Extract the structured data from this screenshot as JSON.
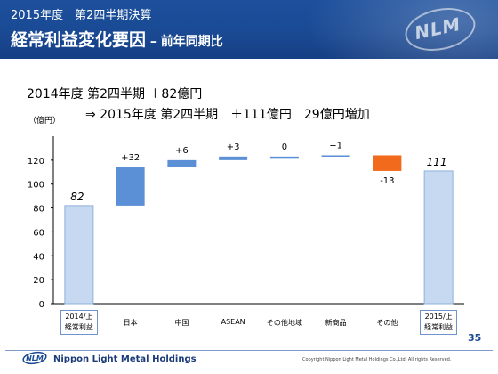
{
  "header": {
    "subtitle": "2015年度　第2四半期決算",
    "title": "経常利益変化要因",
    "title_suffix": " – 前年同期比"
  },
  "summary": {
    "line1": "2014年度 第2四半期 ＋82億円",
    "line2": "⇒ 2015年度 第2四半期　＋111億円　29億円増加"
  },
  "chart_data": {
    "type": "waterfall",
    "unit_label": "（億円）",
    "ylim": [
      0,
      140
    ],
    "yticks": [
      0,
      20,
      40,
      60,
      80,
      100,
      120
    ],
    "grid": false,
    "bars": [
      {
        "category": "2014/上 経常利益",
        "label_lines": [
          "2014/上",
          "経常利益"
        ],
        "kind": "total",
        "value": 82,
        "data_label": "82",
        "boxed": true
      },
      {
        "category": "日本",
        "label_lines": [
          "日本"
        ],
        "kind": "delta",
        "value": 32,
        "data_label": "+32",
        "boxed": false
      },
      {
        "category": "中国",
        "label_lines": [
          "中国"
        ],
        "kind": "delta",
        "value": 6,
        "data_label": "+6",
        "boxed": false
      },
      {
        "category": "ASEAN",
        "label_lines": [
          "ASEAN"
        ],
        "kind": "delta",
        "value": 3,
        "data_label": "+3",
        "boxed": false
      },
      {
        "category": "その他地域",
        "label_lines": [
          "その他地域"
        ],
        "kind": "delta",
        "value": 0,
        "data_label": "0",
        "boxed": false
      },
      {
        "category": "新商品",
        "label_lines": [
          "新商品"
        ],
        "kind": "delta",
        "value": 1,
        "data_label": "+1",
        "boxed": false
      },
      {
        "category": "その他",
        "label_lines": [
          "その他"
        ],
        "kind": "delta",
        "value": -13,
        "data_label": "-13",
        "boxed": false
      },
      {
        "category": "2015/上 経常利益",
        "label_lines": [
          "2015/上",
          "経常利益"
        ],
        "kind": "total",
        "value": 111,
        "data_label": "111",
        "boxed": true
      }
    ],
    "colors": {
      "total": "#c6d9f0",
      "total_border": "#8fb0dc",
      "increase": "#5b8fd6",
      "decrease": "#f26b1d",
      "axis": "#000000"
    }
  },
  "footer": {
    "company": "Nippon Light Metal Holdings",
    "copyright": "Copyright Nippon Light Metal Holdings Co.,Ltd. All rights Reserved.",
    "page": "35",
    "logo_text": "NLM"
  }
}
